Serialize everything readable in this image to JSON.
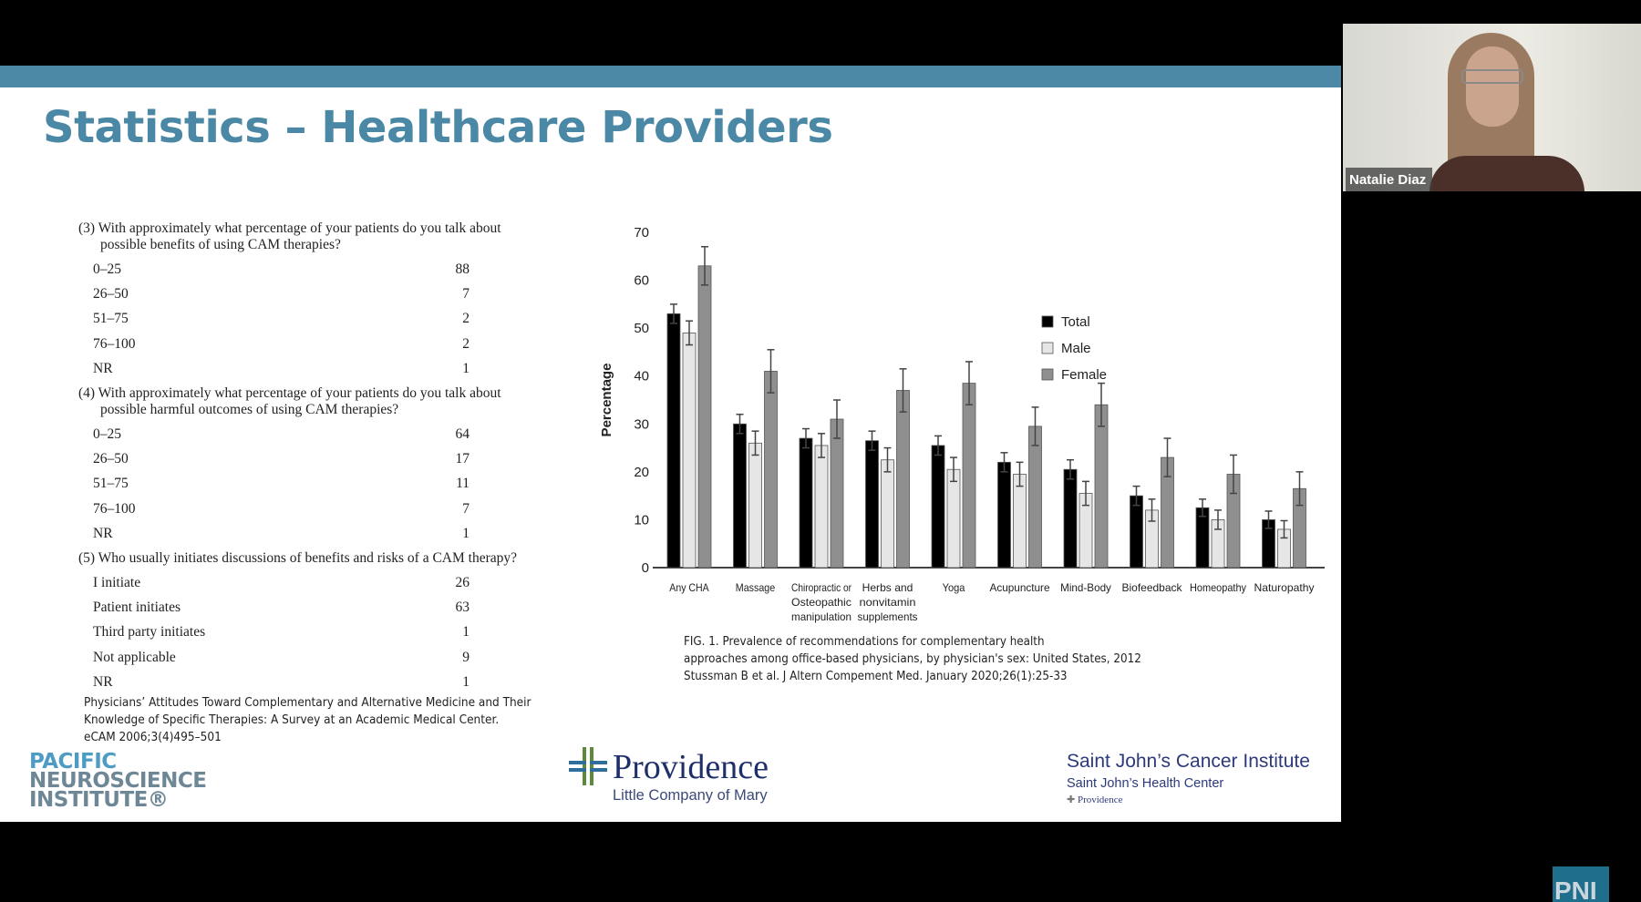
{
  "slide": {
    "title": "Statistics – Healthcare Providers",
    "accent_color": "#4b89a6",
    "survey": [
      {
        "question_l1": "(3) With approximately what percentage of your patients do you talk about",
        "question_l2": "possible benefits of using CAM therapies?",
        "rows": [
          [
            "0–25",
            "88"
          ],
          [
            "26–50",
            "7"
          ],
          [
            "51–75",
            "2"
          ],
          [
            "76–100",
            "2"
          ],
          [
            "NR",
            "1"
          ]
        ]
      },
      {
        "question_l1": "(4) With approximately what percentage of your patients do you talk about",
        "question_l2": "possible harmful outcomes of using CAM therapies?",
        "rows": [
          [
            "0–25",
            "64"
          ],
          [
            "26–50",
            "17"
          ],
          [
            "51–75",
            "11"
          ],
          [
            "76–100",
            "7"
          ],
          [
            "NR",
            "1"
          ]
        ]
      },
      {
        "question_l1": "(5) Who usually initiates discussions of benefits and risks of a CAM therapy?",
        "question_l2": "",
        "rows": [
          [
            "I initiate",
            "26"
          ],
          [
            "Patient initiates",
            "63"
          ],
          [
            "Third party initiates",
            "1"
          ],
          [
            "Not applicable",
            "9"
          ],
          [
            "NR",
            "1"
          ]
        ]
      }
    ],
    "citation": [
      "Physicians’ Attitudes Toward Complementary and Alternative Medicine and Their",
      "Knowledge of Specific Therapies: A Survey at an Academic Medical Center.",
      "eCAM 2006;3(4)495–501"
    ],
    "caption": [
      "FIG. 1. Prevalence of recommendations for complementary health",
      "approaches among office-based physicians, by physician's sex: United States, 2012",
      "Stussman B et al. J Altern Compement Med. January 2020;26(1):25-33"
    ],
    "logos": {
      "pni": [
        "PACIFIC",
        "NEUROSCIENCE",
        "INSTITUTE®"
      ],
      "providence": {
        "name": "Providence",
        "sub": "Little Company of Mary"
      },
      "saint_johns": {
        "line1": "Saint John’s Cancer Institute",
        "line2": "Saint John’s Health Center",
        "line3": "Providence"
      }
    }
  },
  "webcam": {
    "name": "Natalie Diaz"
  },
  "corner_badge": "PNI",
  "chart_data": {
    "type": "bar",
    "ylabel": "Percentage",
    "ylim": [
      0,
      70
    ],
    "yticks": [
      0,
      10,
      20,
      30,
      40,
      50,
      60,
      70
    ],
    "legend_position": "top-right",
    "categories": [
      [
        "Any CHA"
      ],
      [
        "Massage"
      ],
      [
        "Chiropractic or",
        "Osteopathic",
        "manipulation"
      ],
      [
        "Herbs and",
        "nonvitamin",
        "supplements"
      ],
      [
        "Yoga"
      ],
      [
        "Acupuncture"
      ],
      [
        "Mind-Body"
      ],
      [
        "Biofeedback"
      ],
      [
        "Homeopathy"
      ],
      [
        "Naturopathy"
      ]
    ],
    "series": [
      {
        "name": "Total",
        "color": "#000000",
        "values": [
          53,
          30,
          27,
          26.5,
          25.5,
          22,
          20.5,
          15,
          12.5,
          10
        ],
        "error": [
          2,
          2,
          2,
          2,
          2,
          2,
          2,
          2,
          1.8,
          1.8
        ]
      },
      {
        "name": "Male",
        "color": "#e6e6e6",
        "values": [
          49,
          26,
          25.5,
          22.5,
          20.5,
          19.5,
          15.5,
          12,
          10,
          8
        ],
        "error": [
          2.5,
          2.5,
          2.5,
          2.5,
          2.5,
          2.5,
          2.5,
          2.3,
          2,
          1.8
        ]
      },
      {
        "name": "Female",
        "color": "#8f8f8f",
        "values": [
          63,
          41,
          31,
          37,
          38.5,
          29.5,
          34,
          23,
          19.5,
          16.5
        ],
        "error": [
          4,
          4.5,
          4,
          4.5,
          4.5,
          4,
          4.5,
          4,
          4,
          3.5
        ]
      }
    ]
  }
}
